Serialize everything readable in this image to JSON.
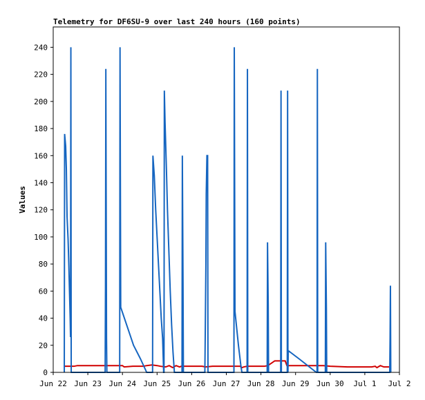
{
  "chart_data": {
    "type": "line",
    "title": "Telemetry for DF6SU-9 over last 240 hours (160 points)",
    "xlabel": "",
    "ylabel": "Values",
    "ylim": [
      0,
      255
    ],
    "xlim": [
      0,
      10
    ],
    "y_ticks": [
      0,
      20,
      40,
      60,
      80,
      100,
      120,
      140,
      160,
      180,
      200,
      220,
      240
    ],
    "x_ticks": [
      {
        "x": 0,
        "label": "Jun 22"
      },
      {
        "x": 1,
        "label": "Jun 23"
      },
      {
        "x": 2,
        "label": "Jun 24"
      },
      {
        "x": 3,
        "label": "Jun 25"
      },
      {
        "x": 4,
        "label": "Jun 26"
      },
      {
        "x": 5,
        "label": "Jun 27"
      },
      {
        "x": 6,
        "label": "Jun 28"
      },
      {
        "x": 7,
        "label": "Jun 29"
      },
      {
        "x": 8,
        "label": "Jun 30"
      },
      {
        "x": 9,
        "label": "Jul 1"
      },
      {
        "x": 10,
        "label": "Jul 2"
      }
    ],
    "grid": false,
    "legend": "none",
    "series": [
      {
        "color": "#d00000",
        "points": [
          [
            0.33,
            4.5
          ],
          [
            0.6,
            4.5
          ],
          [
            0.7,
            5
          ],
          [
            1.0,
            5
          ],
          [
            1.5,
            5
          ],
          [
            2.0,
            5
          ],
          [
            2.05,
            4
          ],
          [
            2.3,
            4.5
          ],
          [
            2.6,
            4.5
          ],
          [
            2.7,
            5
          ],
          [
            2.85,
            5.5
          ],
          [
            3.0,
            5
          ],
          [
            3.1,
            4.5
          ],
          [
            3.25,
            4
          ],
          [
            3.35,
            5
          ],
          [
            3.45,
            3.5
          ],
          [
            3.55,
            5
          ],
          [
            3.65,
            4
          ],
          [
            3.7,
            4.5
          ],
          [
            4.0,
            4.5
          ],
          [
            4.3,
            4.5
          ],
          [
            4.4,
            4
          ],
          [
            4.6,
            4.5
          ],
          [
            5.0,
            4.5
          ],
          [
            5.2,
            4.5
          ],
          [
            5.4,
            4.5
          ],
          [
            5.45,
            3.5
          ],
          [
            5.5,
            4
          ],
          [
            5.6,
            4.5
          ],
          [
            6.0,
            4.5
          ],
          [
            6.1,
            4.5
          ],
          [
            6.2,
            5
          ],
          [
            6.4,
            8.5
          ],
          [
            6.5,
            8.5
          ],
          [
            6.7,
            8.5
          ],
          [
            6.75,
            5
          ],
          [
            7.0,
            5
          ],
          [
            7.5,
            5
          ],
          [
            7.8,
            5
          ],
          [
            8.0,
            4.5
          ],
          [
            8.5,
            4
          ],
          [
            9.0,
            4
          ],
          [
            9.2,
            4
          ],
          [
            9.3,
            4.5
          ],
          [
            9.35,
            3.5
          ],
          [
            9.45,
            5
          ],
          [
            9.55,
            4
          ],
          [
            9.7,
            4
          ]
        ]
      },
      {
        "color": "#1565c0",
        "points": [
          [
            0.32,
            0
          ],
          [
            0.33,
            176
          ],
          [
            0.36,
            167
          ],
          [
            0.38,
            150
          ],
          [
            0.4,
            115
          ],
          [
            0.43,
            98
          ],
          [
            0.45,
            80
          ],
          [
            0.47,
            60
          ],
          [
            0.49,
            40
          ],
          [
            0.5,
            26
          ],
          [
            0.51,
            240
          ],
          [
            0.52,
            0
          ],
          [
            1.5,
            0
          ],
          [
            1.51,
            64
          ],
          [
            1.52,
            224
          ],
          [
            1.54,
            25
          ],
          [
            1.55,
            0
          ],
          [
            1.92,
            0
          ],
          [
            1.93,
            240
          ],
          [
            1.95,
            48
          ],
          [
            2.32,
            20
          ],
          [
            2.52,
            10
          ],
          [
            2.7,
            0
          ],
          [
            2.87,
            0
          ],
          [
            2.88,
            160
          ],
          [
            2.92,
            145
          ],
          [
            2.96,
            120
          ],
          [
            3.0,
            100
          ],
          [
            3.04,
            80
          ],
          [
            3.08,
            60
          ],
          [
            3.12,
            40
          ],
          [
            3.16,
            25
          ],
          [
            3.19,
            0
          ],
          [
            3.2,
            0
          ],
          [
            3.21,
            208
          ],
          [
            3.23,
            185
          ],
          [
            3.27,
            150
          ],
          [
            3.3,
            120
          ],
          [
            3.34,
            90
          ],
          [
            3.38,
            60
          ],
          [
            3.42,
            35
          ],
          [
            3.46,
            15
          ],
          [
            3.5,
            0
          ],
          [
            3.72,
            0
          ],
          [
            3.73,
            160
          ],
          [
            3.75,
            64
          ],
          [
            3.76,
            0
          ],
          [
            4.38,
            0
          ],
          [
            4.39,
            25
          ],
          [
            4.41,
            80
          ],
          [
            4.42,
            132
          ],
          [
            4.44,
            160
          ],
          [
            4.46,
            160
          ],
          [
            4.47,
            0
          ],
          [
            5.22,
            0
          ],
          [
            5.23,
            240
          ],
          [
            5.25,
            45
          ],
          [
            5.29,
            35
          ],
          [
            5.35,
            20
          ],
          [
            5.42,
            5
          ],
          [
            5.45,
            0
          ],
          [
            5.6,
            0
          ],
          [
            5.61,
            224
          ],
          [
            5.62,
            0
          ],
          [
            6.18,
            0
          ],
          [
            6.19,
            96
          ],
          [
            6.21,
            50
          ],
          [
            6.22,
            0
          ],
          [
            6.57,
            0
          ],
          [
            6.58,
            208
          ],
          [
            6.59,
            0
          ],
          [
            6.76,
            0
          ],
          [
            6.77,
            208
          ],
          [
            6.78,
            0
          ],
          [
            6.79,
            16
          ],
          [
            7.1,
            10
          ],
          [
            7.6,
            0
          ],
          [
            7.62,
            0
          ],
          [
            7.63,
            224
          ],
          [
            7.64,
            0
          ],
          [
            7.86,
            0
          ],
          [
            7.87,
            96
          ],
          [
            7.89,
            48
          ],
          [
            7.9,
            0
          ],
          [
            9.72,
            0
          ],
          [
            9.73,
            25
          ],
          [
            9.74,
            64
          ],
          [
            9.75,
            0
          ]
        ]
      }
    ]
  }
}
